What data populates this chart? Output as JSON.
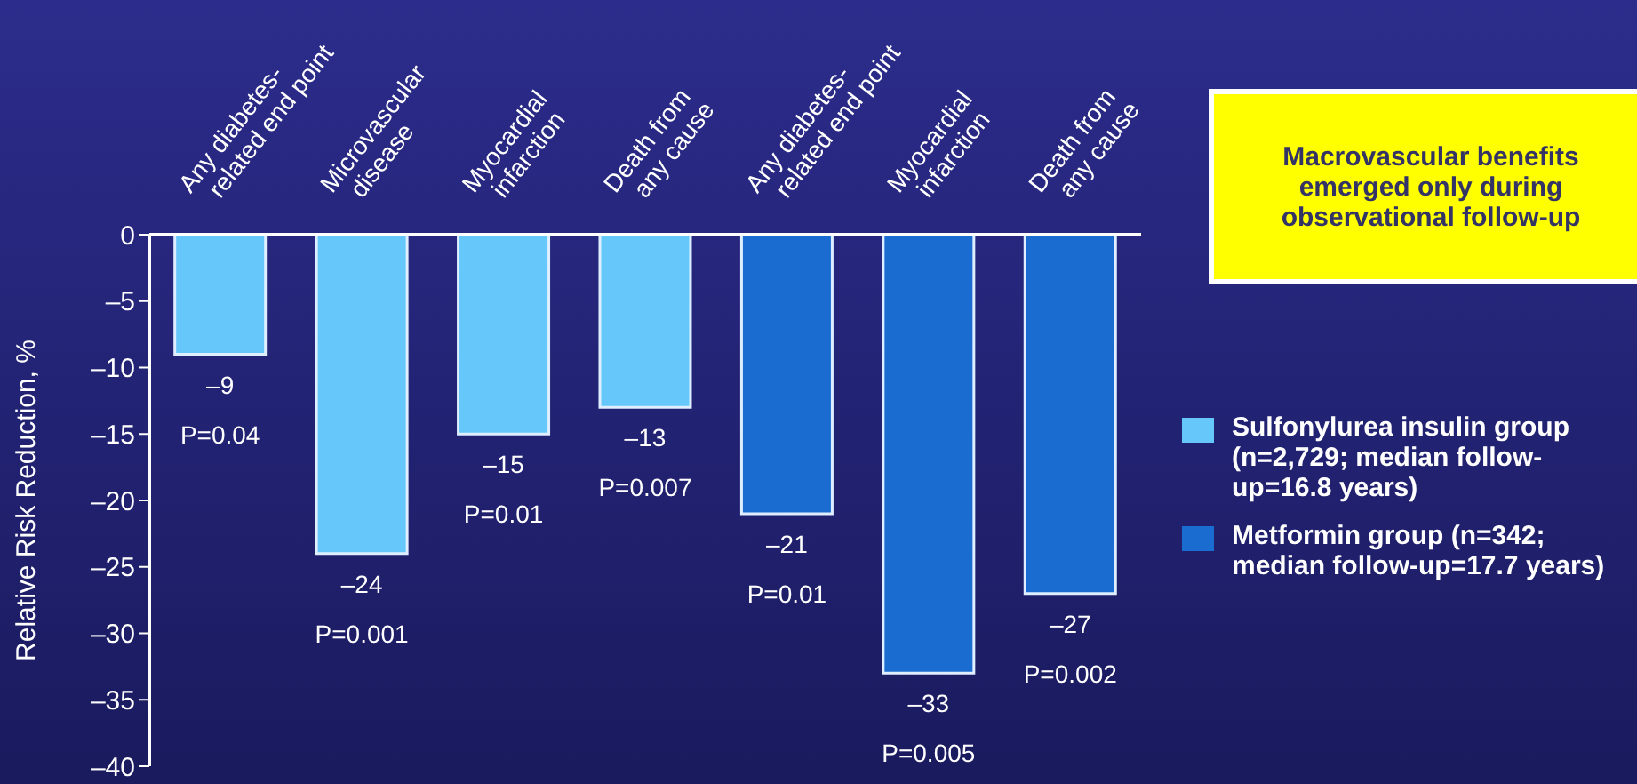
{
  "chart_data": {
    "type": "bar",
    "ylabel": "Relative Risk Reduction, %",
    "categories": [
      "Any diabetes-\nrelated end point",
      "Microvascular\ndisease",
      "Myocardial\ninfarction",
      "Death from\nany cause",
      "Any diabetes-\nrelated end point",
      "Myocardial\ninfarction",
      "Death from\nany cause"
    ],
    "series": [
      {
        "name": "Sulfonylurea insulin group (n=2,729; median follow-up=16.8 years)",
        "color": "#66c8fa",
        "values": [
          -9,
          -24,
          -15,
          -13,
          null,
          null,
          null
        ],
        "value_labels": [
          "–9\nP=0.04",
          "–24\nP=0.001",
          "–15\nP=0.01",
          "–13\nP=0.007",
          null,
          null,
          null
        ]
      },
      {
        "name": "Metformin group (n=342; median follow-up=17.7 years)",
        "color": "#1a6cd0",
        "values": [
          null,
          null,
          null,
          null,
          -21,
          -33,
          -27
        ],
        "value_labels": [
          null,
          null,
          null,
          null,
          "–21\nP=0.01",
          "–33\nP=0.005",
          "–27\nP=0.002"
        ]
      }
    ],
    "stacked": true,
    "ylim": [
      -40,
      0
    ],
    "yticks": [
      0,
      {
        "value": -5,
        "label": "–5"
      },
      {
        "value": -10,
        "label": "–10"
      },
      {
        "value": -15,
        "label": "–15"
      },
      {
        "value": -20,
        "label": "–20"
      },
      {
        "value": -25,
        "label": "–25"
      },
      {
        "value": -30,
        "label": "–30"
      },
      {
        "value": -35,
        "label": "–35"
      },
      {
        "value": -40,
        "label": "–40"
      }
    ],
    "legend": "right",
    "annotations": [
      "Macrovascular benefits emerged only during observational follow-up"
    ]
  }
}
